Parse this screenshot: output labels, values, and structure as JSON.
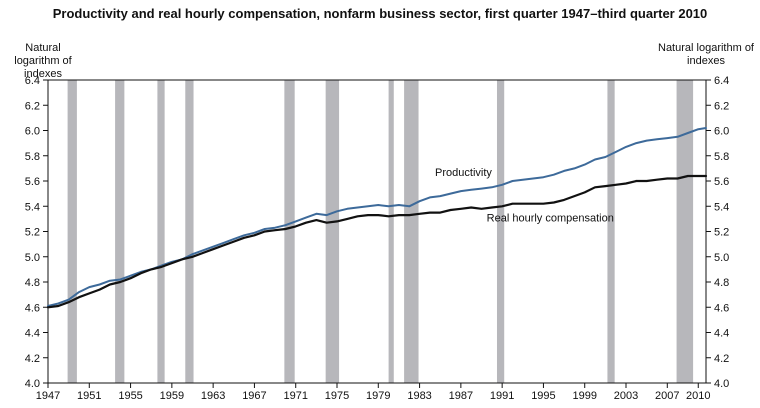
{
  "chart_data": {
    "type": "line",
    "title": "Productivity and real hourly compensation, nonfarm business sector, first quarter 1947–third quarter 2010",
    "ylabel_left": "Natural logarithm of indexes",
    "ylabel_right": "Natural logarithm of indexes",
    "xlabel": "",
    "xlim": [
      1947,
      2010.75
    ],
    "ylim": [
      4.0,
      6.4
    ],
    "y_ticks": [
      4.0,
      4.2,
      4.4,
      4.6,
      4.8,
      5.0,
      5.2,
      5.4,
      5.6,
      5.8,
      6.0,
      6.2,
      6.4
    ],
    "y_tick_labels": [
      "4.0",
      "4.2",
      "4.4",
      "4.6",
      "4.8",
      "5.0",
      "5.2",
      "5.4",
      "5.6",
      "5.8",
      "6.0",
      "6.2",
      "6.4"
    ],
    "x_ticks": [
      1947,
      1951,
      1955,
      1959,
      1963,
      1967,
      1971,
      1975,
      1979,
      1983,
      1987,
      1991,
      1995,
      1999,
      2003,
      2007,
      2010
    ],
    "x_tick_labels": [
      "1947",
      "1951",
      "1955",
      "1959",
      "1963",
      "1967",
      "1971",
      "1975",
      "1979",
      "1983",
      "1987",
      "1991",
      "1995",
      "1999",
      "2003",
      "2007",
      "2010"
    ],
    "recessions": [
      [
        1948.9,
        1949.8
      ],
      [
        1953.5,
        1954.4
      ],
      [
        1957.6,
        1958.3
      ],
      [
        1960.3,
        1961.1
      ],
      [
        1969.9,
        1970.9
      ],
      [
        1973.9,
        1975.2
      ],
      [
        1980.0,
        1980.5
      ],
      [
        1981.5,
        1982.9
      ],
      [
        1990.5,
        1991.2
      ],
      [
        2001.2,
        2001.9
      ],
      [
        2007.9,
        2009.5
      ]
    ],
    "series": [
      {
        "name": "Productivity",
        "color": "#3d6a9a",
        "x": [
          1947,
          1948,
          1949,
          1950,
          1951,
          1952,
          1953,
          1954,
          1955,
          1956,
          1957,
          1958,
          1959,
          1960,
          1961,
          1962,
          1963,
          1964,
          1965,
          1966,
          1967,
          1968,
          1969,
          1970,
          1971,
          1972,
          1973,
          1974,
          1975,
          1976,
          1977,
          1978,
          1979,
          1980,
          1981,
          1982,
          1983,
          1984,
          1985,
          1986,
          1987,
          1988,
          1989,
          1990,
          1991,
          1992,
          1993,
          1994,
          1995,
          1996,
          1997,
          1998,
          1999,
          2000,
          2001,
          2002,
          2003,
          2004,
          2005,
          2006,
          2007,
          2008,
          2009,
          2010,
          2010.75
        ],
        "values": [
          4.61,
          4.63,
          4.66,
          4.72,
          4.76,
          4.78,
          4.81,
          4.82,
          4.85,
          4.88,
          4.9,
          4.93,
          4.96,
          4.98,
          5.02,
          5.05,
          5.08,
          5.11,
          5.14,
          5.17,
          5.19,
          5.22,
          5.23,
          5.25,
          5.28,
          5.31,
          5.34,
          5.33,
          5.36,
          5.38,
          5.39,
          5.4,
          5.41,
          5.4,
          5.41,
          5.4,
          5.44,
          5.47,
          5.48,
          5.5,
          5.52,
          5.53,
          5.54,
          5.55,
          5.57,
          5.6,
          5.61,
          5.62,
          5.63,
          5.65,
          5.68,
          5.7,
          5.73,
          5.77,
          5.79,
          5.83,
          5.87,
          5.9,
          5.92,
          5.93,
          5.94,
          5.95,
          5.98,
          6.01,
          6.02
        ]
      },
      {
        "name": "Real hourly compensation",
        "color": "#111111",
        "x": [
          1947,
          1948,
          1949,
          1950,
          1951,
          1952,
          1953,
          1954,
          1955,
          1956,
          1957,
          1958,
          1959,
          1960,
          1961,
          1962,
          1963,
          1964,
          1965,
          1966,
          1967,
          1968,
          1969,
          1970,
          1971,
          1972,
          1973,
          1974,
          1975,
          1976,
          1977,
          1978,
          1979,
          1980,
          1981,
          1982,
          1983,
          1984,
          1985,
          1986,
          1987,
          1988,
          1989,
          1990,
          1991,
          1992,
          1993,
          1994,
          1995,
          1996,
          1997,
          1998,
          1999,
          2000,
          2001,
          2002,
          2003,
          2004,
          2005,
          2006,
          2007,
          2008,
          2009,
          2010,
          2010.75
        ],
        "values": [
          4.6,
          4.61,
          4.64,
          4.68,
          4.71,
          4.74,
          4.78,
          4.8,
          4.83,
          4.87,
          4.9,
          4.92,
          4.95,
          4.98,
          5.0,
          5.03,
          5.06,
          5.09,
          5.12,
          5.15,
          5.17,
          5.2,
          5.21,
          5.22,
          5.24,
          5.27,
          5.29,
          5.27,
          5.28,
          5.3,
          5.32,
          5.33,
          5.33,
          5.32,
          5.33,
          5.33,
          5.34,
          5.35,
          5.35,
          5.37,
          5.38,
          5.39,
          5.38,
          5.39,
          5.4,
          5.42,
          5.42,
          5.42,
          5.42,
          5.43,
          5.45,
          5.48,
          5.51,
          5.55,
          5.56,
          5.57,
          5.58,
          5.6,
          5.6,
          5.61,
          5.62,
          5.62,
          5.64,
          5.64,
          5.64
        ]
      }
    ],
    "annotations": [
      {
        "text": "Productivity",
        "x": 1984.5,
        "y": 5.64
      },
      {
        "text": "Real hourly compensation",
        "x": 1989.5,
        "y": 5.28
      }
    ]
  }
}
